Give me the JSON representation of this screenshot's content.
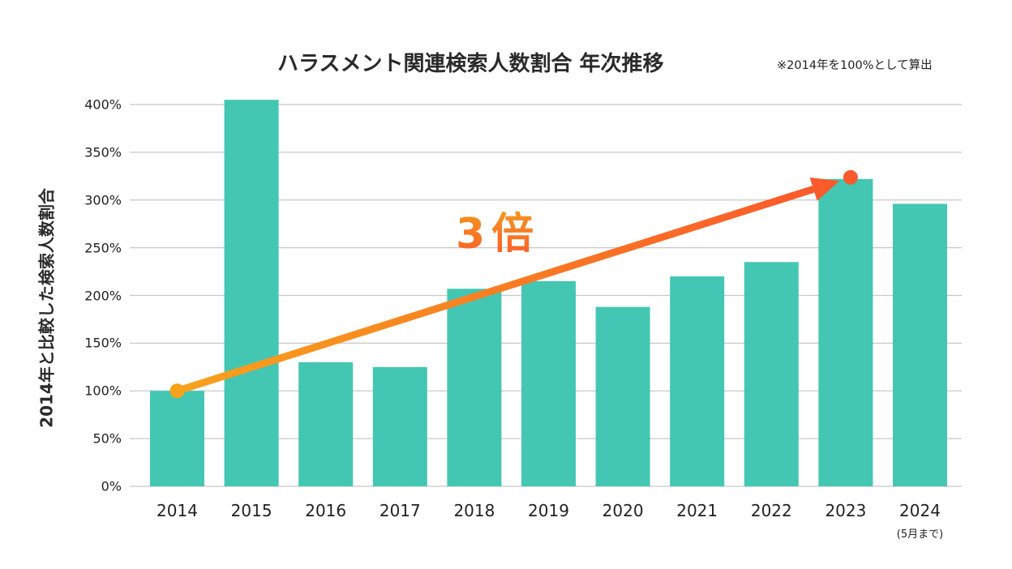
{
  "chart_data": {
    "type": "bar",
    "title": "ハラスメント関連検索人数割合 年次推移",
    "note": "※2014年を100%として算出",
    "xlabel": "",
    "ylabel": "2014年と比較した検索人数割合",
    "categories": [
      "2014",
      "2015",
      "2016",
      "2017",
      "2018",
      "2019",
      "2020",
      "2021",
      "2022",
      "2023",
      "2024"
    ],
    "category_sublabels": {
      "2024": "(5月まで)"
    },
    "values": [
      100,
      405,
      130,
      125,
      207,
      215,
      188,
      220,
      235,
      322,
      296
    ],
    "unit": "%",
    "ylim": [
      0,
      400
    ],
    "yticks": [
      "0%",
      "50%",
      "100%",
      "150%",
      "200%",
      "250%",
      "300%",
      "350%",
      "400%"
    ],
    "ytick_values": [
      0,
      50,
      100,
      150,
      200,
      250,
      300,
      350,
      400
    ],
    "grid": true,
    "annotation": {
      "text": "3倍",
      "arrow_from": {
        "category": "2014",
        "value": 100
      },
      "arrow_to": {
        "category": "2023",
        "value": 322
      }
    },
    "colors": {
      "bar": "#43c7b3",
      "grid": "#c8c8c8",
      "arrow_start": "#f7a21b",
      "arrow_end": "#fb5a2b"
    }
  }
}
